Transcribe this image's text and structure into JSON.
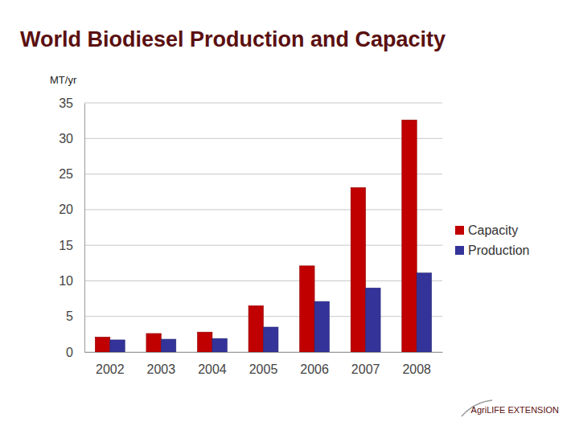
{
  "chart_data": {
    "type": "bar",
    "title": "World Biodiesel Production and Capacity",
    "y_label": "MT/yr",
    "categories": [
      "2002",
      "2003",
      "2004",
      "2005",
      "2006",
      "2007",
      "2008"
    ],
    "series": [
      {
        "name": "Capacity",
        "color": "#c00000",
        "values": [
          2.1,
          2.6,
          2.8,
          6.5,
          12.1,
          23.1,
          32.6
        ]
      },
      {
        "name": "Production",
        "color": "#333399",
        "values": [
          1.7,
          1.8,
          1.9,
          3.5,
          7.1,
          9.0,
          11.1
        ]
      }
    ],
    "ylim": [
      0,
      35
    ],
    "yticks": [
      0,
      5,
      10,
      15,
      20,
      25,
      30,
      35
    ],
    "grid": true,
    "legend": "right",
    "annotations": [
      "AgriLIFE EXTENSION"
    ]
  }
}
